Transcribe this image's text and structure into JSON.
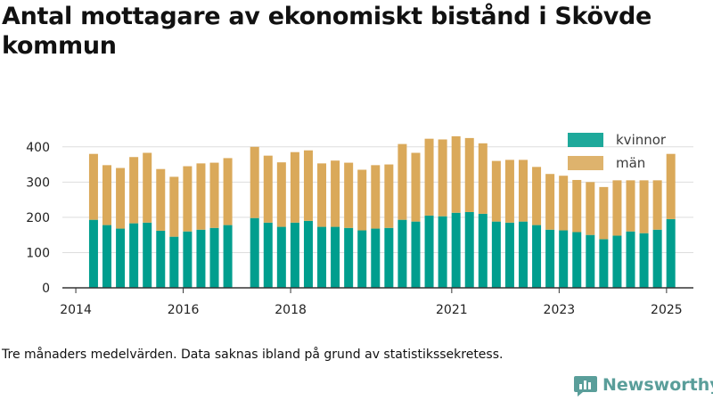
{
  "title": "Antal mottagare av ekonomiskt bistånd i Skövde kommun",
  "footnote": "Tre månaders medelvärden. Data saknas ibland på grund av statistikssekretess.",
  "brand": {
    "name": "Newsworthy",
    "logo_icon": "newsworthy-logo-icon"
  },
  "colors": {
    "kvinnor": "#009e8e",
    "man": "#daa95a",
    "grid": "#dddddd",
    "axis": "#333333",
    "brand": "#5a9e9a"
  },
  "chart_data": {
    "type": "bar",
    "stacked": true,
    "title": "Antal mottagare av ekonomiskt bistånd i Skövde kommun",
    "xlabel": "",
    "ylabel": "",
    "ylim": [
      0,
      450
    ],
    "y_ticks": [
      0,
      100,
      200,
      300,
      400
    ],
    "x_ticks": [
      2014,
      2016,
      2018,
      2021,
      2023,
      2025
    ],
    "grid": true,
    "legend_position": "top-right",
    "x": [
      2014.33,
      2014.58,
      2014.83,
      2015.08,
      2015.33,
      2015.58,
      2015.83,
      2016.08,
      2016.33,
      2016.58,
      2016.83,
      2017.33,
      2017.58,
      2017.83,
      2018.08,
      2018.33,
      2018.58,
      2018.83,
      2019.08,
      2019.33,
      2019.58,
      2019.83,
      2020.08,
      2020.33,
      2020.58,
      2020.83,
      2021.08,
      2021.33,
      2021.58,
      2021.83,
      2022.08,
      2022.33,
      2022.58,
      2022.83,
      2023.08,
      2023.33,
      2023.58,
      2023.83,
      2024.08,
      2024.33,
      2024.58,
      2024.83,
      2025.08
    ],
    "series": [
      {
        "name": "kvinnor",
        "values": [
          193,
          178,
          168,
          183,
          185,
          162,
          145,
          160,
          165,
          170,
          178,
          198,
          185,
          173,
          185,
          190,
          173,
          173,
          170,
          163,
          168,
          170,
          193,
          188,
          205,
          203,
          213,
          215,
          210,
          188,
          185,
          188,
          178,
          165,
          163,
          158,
          150,
          138,
          148,
          160,
          155,
          165,
          195
        ]
      },
      {
        "name": "män",
        "values": [
          187,
          170,
          172,
          188,
          198,
          175,
          170,
          185,
          188,
          185,
          190,
          202,
          190,
          183,
          200,
          200,
          180,
          188,
          185,
          172,
          180,
          180,
          215,
          195,
          218,
          218,
          217,
          210,
          200,
          172,
          178,
          175,
          165,
          158,
          155,
          148,
          150,
          148,
          157,
          145,
          150,
          140,
          185
        ]
      }
    ]
  }
}
